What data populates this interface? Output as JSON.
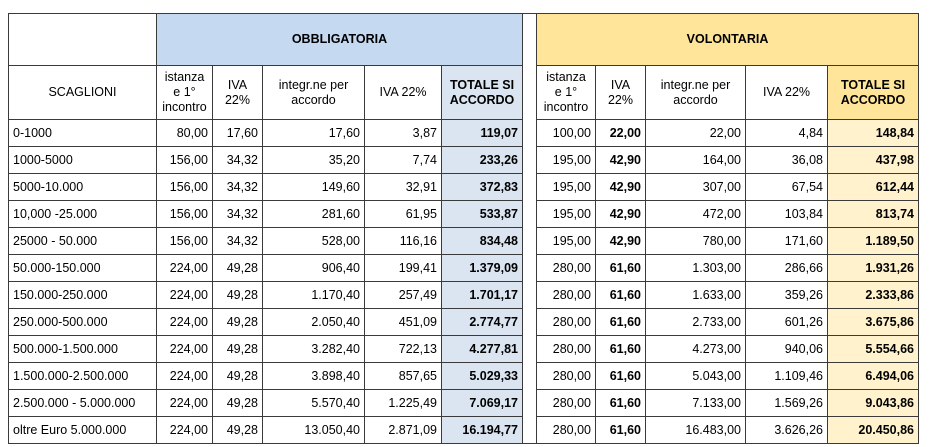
{
  "groups": {
    "obbligatoria": "OBBLIGATORIA",
    "volontaria": "VOLONTARIA"
  },
  "headers": {
    "scaglioni": "SCAGLIONI",
    "obbligatoria": [
      "istanza e 1° incontro",
      "IVA 22%",
      "integr.ne per accordo",
      "IVA 22%",
      "TOTALE SI ACCORDO"
    ],
    "volontaria": [
      "istanza e 1° incontro",
      "IVA 22%",
      "integr.ne per accordo",
      "IVA 22%",
      "TOTALE SI ACCORDO"
    ]
  },
  "rows": [
    {
      "scaglione": "0-1000",
      "o": [
        "80,00",
        "17,60",
        "17,60",
        "3,87",
        "119,07"
      ],
      "v": [
        "100,00",
        "22,00",
        "22,00",
        "4,84",
        "148,84"
      ]
    },
    {
      "scaglione": "1000-5000",
      "o": [
        "156,00",
        "34,32",
        "35,20",
        "7,74",
        "233,26"
      ],
      "v": [
        "195,00",
        "42,90",
        "164,00",
        "36,08",
        "437,98"
      ]
    },
    {
      "scaglione": "5000-10.000",
      "o": [
        "156,00",
        "34,32",
        "149,60",
        "32,91",
        "372,83"
      ],
      "v": [
        "195,00",
        "42,90",
        "307,00",
        "67,54",
        "612,44"
      ]
    },
    {
      "scaglione": "10,000 -25.000",
      "o": [
        "156,00",
        "34,32",
        "281,60",
        "61,95",
        "533,87"
      ],
      "v": [
        "195,00",
        "42,90",
        "472,00",
        "103,84",
        "813,74"
      ]
    },
    {
      "scaglione": "25000 - 50.000",
      "o": [
        "156,00",
        "34,32",
        "528,00",
        "116,16",
        "834,48"
      ],
      "v": [
        "195,00",
        "42,90",
        "780,00",
        "171,60",
        "1.189,50"
      ]
    },
    {
      "scaglione": "50.000-150.000",
      "o": [
        "224,00",
        "49,28",
        "906,40",
        "199,41",
        "1.379,09"
      ],
      "v": [
        "280,00",
        "61,60",
        "1.303,00",
        "286,66",
        "1.931,26"
      ]
    },
    {
      "scaglione": "150.000-250.000",
      "o": [
        "224,00",
        "49,28",
        "1.170,40",
        "257,49",
        "1.701,17"
      ],
      "v": [
        "280,00",
        "61,60",
        "1.633,00",
        "359,26",
        "2.333,86"
      ]
    },
    {
      "scaglione": "250.000-500.000",
      "o": [
        "224,00",
        "49,28",
        "2.050,40",
        "451,09",
        "2.774,77"
      ],
      "v": [
        "280,00",
        "61,60",
        "2.733,00",
        "601,26",
        "3.675,86"
      ]
    },
    {
      "scaglione": "500.000-1.500.000",
      "o": [
        "224,00",
        "49,28",
        "3.282,40",
        "722,13",
        "4.277,81"
      ],
      "v": [
        "280,00",
        "61,60",
        "4.273,00",
        "940,06",
        "5.554,66"
      ]
    },
    {
      "scaglione": "1.500.000-2.500.000",
      "o": [
        "224,00",
        "49,28",
        "3.898,40",
        "857,65",
        "5.029,33"
      ],
      "v": [
        "280,00",
        "61,60",
        "5.043,00",
        "1.109,46",
        "6.494,06"
      ]
    },
    {
      "scaglione": "2.500.000 - 5.000.000",
      "o": [
        "224,00",
        "49,28",
        "5.570,40",
        "1.225,49",
        "7.069,17"
      ],
      "v": [
        "280,00",
        "61,60",
        "7.133,00",
        "1.569,26",
        "9.043,86"
      ]
    },
    {
      "scaglione": "oltre Euro 5.000.000",
      "o": [
        "224,00",
        "49,28",
        "13.050,40",
        "2.871,09",
        "16.194,77"
      ],
      "v": [
        "280,00",
        "61,60",
        "16.483,00",
        "3.626,26",
        "20.450,86"
      ]
    }
  ],
  "colors": {
    "obbligatoria_header": "#c5d9f1",
    "obbligatoria_total": "#dbe5f1",
    "volontaria_header": "#ffe599",
    "volontaria_total": "#fff2cc"
  }
}
